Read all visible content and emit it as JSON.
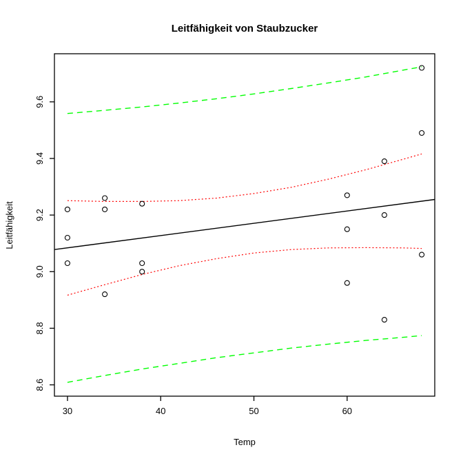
{
  "figure": {
    "background": "#FFFFFF"
  },
  "chart_data": {
    "type": "scatter",
    "title": "Leitfähigkeit von Staubzucker",
    "xlabel": "Temp",
    "ylabel": "Leitfähigkeit",
    "xlim": [
      28.6,
      69.4
    ],
    "ylim": [
      8.56,
      9.77
    ],
    "grid": "off",
    "legend": "none",
    "x_ticks": [
      30,
      40,
      50,
      60
    ],
    "x_tick_labels": [
      "30",
      "40",
      "50",
      "60"
    ],
    "y_ticks": [
      8.6,
      8.8,
      9.0,
      9.2,
      9.4,
      9.6
    ],
    "y_tick_labels": [
      "8.6",
      "8.8",
      "9.0",
      "9.2",
      "9.4",
      "9.6"
    ],
    "points": {
      "marker": "open-circle",
      "color": "#000000",
      "x": [
        30,
        30,
        30,
        34,
        34,
        34,
        38,
        38,
        38,
        60,
        60,
        60,
        64,
        64,
        64,
        68,
        68,
        68
      ],
      "y": [
        9.22,
        9.12,
        9.03,
        9.26,
        9.22,
        8.92,
        9.24,
        9.03,
        9.0,
        9.27,
        9.15,
        8.96,
        9.39,
        9.2,
        8.83,
        9.72,
        9.49,
        9.06
      ]
    },
    "series": [
      {
        "name": "regression-fit-line",
        "style": "solid",
        "color": "#000000",
        "width": 1.4,
        "x": [
          28.6,
          69.4
        ],
        "y": [
          9.078,
          9.255
        ]
      },
      {
        "name": "confidence-band-upper",
        "style": "dotted",
        "color": "#FF0000",
        "width": 1.2,
        "x": [
          30,
          34,
          38,
          42,
          46,
          50,
          54,
          58,
          62,
          66,
          68
        ],
        "y": [
          9.251,
          9.248,
          9.248,
          9.251,
          9.26,
          9.276,
          9.298,
          9.327,
          9.36,
          9.397,
          9.416
        ]
      },
      {
        "name": "confidence-band-lower",
        "style": "dotted",
        "color": "#FF0000",
        "width": 1.2,
        "x": [
          30,
          34,
          38,
          42,
          46,
          50,
          54,
          58,
          62,
          66,
          68
        ],
        "y": [
          8.917,
          8.954,
          8.99,
          9.021,
          9.046,
          9.066,
          9.078,
          9.084,
          9.085,
          9.084,
          9.082
        ]
      },
      {
        "name": "prediction-band-upper",
        "style": "dashed",
        "color": "#00FF00",
        "width": 1.4,
        "x": [
          30,
          34,
          38,
          42,
          46,
          50,
          54,
          58,
          62,
          66,
          68
        ],
        "y": [
          9.559,
          9.57,
          9.582,
          9.596,
          9.611,
          9.628,
          9.647,
          9.667,
          9.688,
          9.712,
          9.724
        ]
      },
      {
        "name": "prediction-band-lower",
        "style": "dashed",
        "color": "#00FF00",
        "width": 1.4,
        "x": [
          30,
          34,
          38,
          42,
          46,
          50,
          54,
          58,
          62,
          66,
          68
        ],
        "y": [
          8.609,
          8.633,
          8.656,
          8.676,
          8.696,
          8.713,
          8.73,
          8.744,
          8.757,
          8.768,
          8.774
        ]
      }
    ]
  }
}
